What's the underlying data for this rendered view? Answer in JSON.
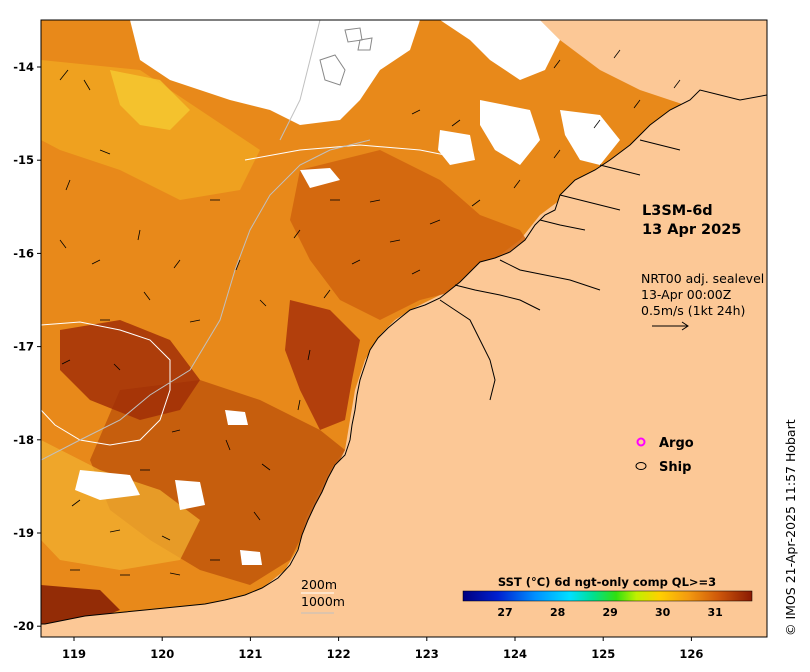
{
  "product": {
    "name": "L3SM-6d",
    "date": "13 Apr 2025"
  },
  "currents": {
    "source": "NRT00 adj. sealevel",
    "time": "13-Apr 00:00Z",
    "scale": "0.5m/s (1kt 24h)"
  },
  "legend": {
    "argo": "Argo",
    "ship": "Ship",
    "argo_color": "#ff00ff"
  },
  "bathymetry": {
    "contour1": "200m",
    "contour2": "1000m"
  },
  "colorbar": {
    "title": "SST (°C) 6d ngt-only comp QL>=3",
    "ticks": [
      "27",
      "28",
      "29",
      "30",
      "31"
    ],
    "range": [
      26.2,
      31.7
    ]
  },
  "axes": {
    "x_ticks": [
      "119",
      "120",
      "121",
      "122",
      "123",
      "124",
      "125",
      "126"
    ],
    "y_ticks": [
      "-14",
      "-15",
      "-16",
      "-17",
      "-18",
      "-19",
      "-20"
    ]
  },
  "credit": "© IMOS 21-Apr-2025 11:57 Hobart",
  "colors": {
    "land": "#fcc896",
    "sst_main": "#e8891a",
    "sst_warm": "#c85a0c",
    "sst_hot": "#9e2a06",
    "sst_cool": "#f3b51e"
  }
}
